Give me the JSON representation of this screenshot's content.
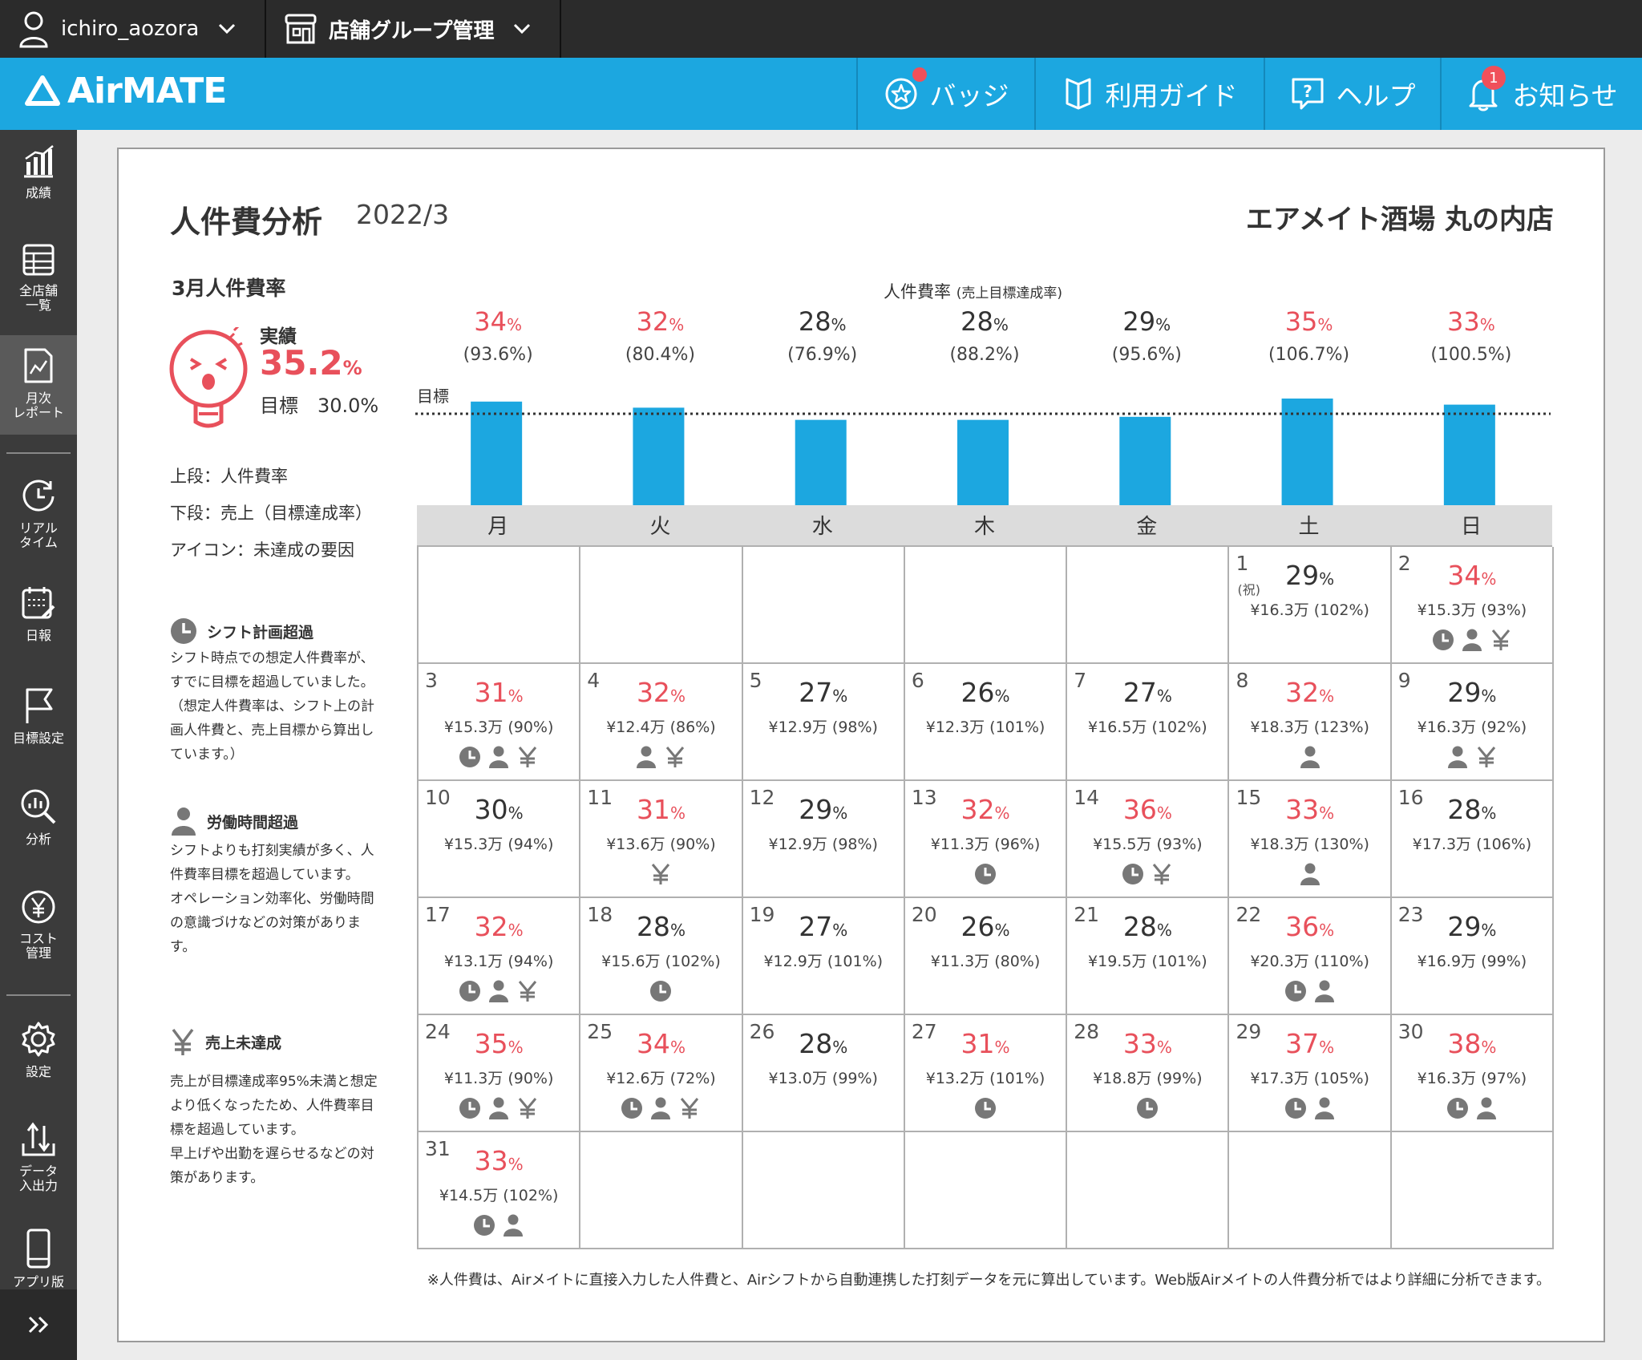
{
  "topbar": {
    "user": "ichiro_aozora",
    "group": "店舗グループ管理"
  },
  "header": {
    "logo": "AirMATE",
    "buttons": [
      {
        "label": "バッジ",
        "icon": "star-badge-icon"
      },
      {
        "label": "利用ガイド",
        "icon": "guide-book-icon"
      },
      {
        "label": "ヘルプ",
        "icon": "help-bubble-icon"
      },
      {
        "label": "お知らせ",
        "icon": "bell-icon",
        "count": "1"
      }
    ]
  },
  "sidebar": [
    {
      "label": "成績",
      "icon": "bar-chart-icon"
    },
    {
      "label": "全店舗\n一覧",
      "icon": "table-icon"
    },
    {
      "label": "月次\nレポート",
      "icon": "report-icon",
      "active": true
    },
    {
      "label": "リアル\nタイム",
      "icon": "clock-icon"
    },
    {
      "label": "日報",
      "icon": "calendar-icon"
    },
    {
      "label": "目標設定",
      "icon": "flag-icon"
    },
    {
      "label": "分析",
      "icon": "analysis-icon"
    },
    {
      "label": "コスト\n管理",
      "icon": "yen-icon"
    },
    {
      "label": "設定",
      "icon": "gear-icon"
    },
    {
      "label": "データ\n入出力",
      "icon": "data-io-icon"
    },
    {
      "label": "アプリ版",
      "icon": "phone-icon"
    }
  ],
  "page": {
    "title": "人件費分析",
    "period": "2022/3",
    "store": "エアメイト酒場 丸の内店"
  },
  "summary": {
    "title": "3月人件費率",
    "actual_label": "実績",
    "actual_value": "35.2",
    "pct": "%",
    "target_label": "目標　30.0%"
  },
  "legend": {
    "upper": "上段：人件費率",
    "lower": "下段：売上（目標達成率）",
    "icon": "アイコン：未達成の要因"
  },
  "reasons": [
    {
      "title": "シフト計画超過",
      "icon": "clock-icon",
      "text": "シフト時点での想定人件費率が、すでに目標を超過していました。（想定人件費率は、シフト上の計画人件費と、売上目標から算出しています。）"
    },
    {
      "title": "労働時間超過",
      "icon": "person-icon",
      "text": "シフトよりも打刻実績が多く、人件費率目標を超過しています。\nオペレーション効率化、労働時間の意識づけなどの対策があります。"
    },
    {
      "title": "売上未達成",
      "icon": "yen-icon",
      "text": "売上が目標達成率95%未満と想定より低くなったため、人件費率目標を超過しています。\n早上げや出勤を遅らせるなどの対策があります。"
    }
  ],
  "chart_data": {
    "type": "bar",
    "title": "人件費率",
    "subtitle": "(売上目標達成率)",
    "goal_label": "目標",
    "goal_value": 30,
    "categories": [
      "月",
      "火",
      "水",
      "木",
      "金",
      "土",
      "日"
    ],
    "values": [
      34,
      32,
      28,
      28,
      29,
      35,
      33
    ],
    "labels": [
      "34",
      "32",
      "28",
      "28",
      "29",
      "35",
      "33"
    ],
    "sub_labels": [
      "(93.6%)",
      "(80.4%)",
      "(76.9%)",
      "(88.2%)",
      "(95.6%)",
      "(106.7%)",
      "(100.5%)"
    ],
    "over_goal": [
      true,
      true,
      false,
      false,
      false,
      true,
      true
    ],
    "color": "#1ca7e0",
    "over_color": "#e8505b"
  },
  "calendar": {
    "weekdays": [
      "月",
      "火",
      "水",
      "木",
      "金",
      "土",
      "日"
    ],
    "leading_blanks": 5,
    "days": [
      {
        "d": "1",
        "hol": "(祝)",
        "rate": "29",
        "over": false,
        "sales": "¥16.3万 (102%)",
        "icons": []
      },
      {
        "d": "2",
        "rate": "34",
        "over": true,
        "sales": "¥15.3万 (93%)",
        "icons": [
          "clock",
          "person",
          "yen"
        ]
      },
      {
        "d": "3",
        "rate": "31",
        "over": true,
        "sales": "¥15.3万 (90%)",
        "icons": [
          "clock",
          "person",
          "yen"
        ]
      },
      {
        "d": "4",
        "rate": "32",
        "over": true,
        "sales": "¥12.4万 (86%)",
        "icons": [
          "person",
          "yen"
        ]
      },
      {
        "d": "5",
        "rate": "27",
        "over": false,
        "sales": "¥12.9万 (98%)",
        "icons": []
      },
      {
        "d": "6",
        "rate": "26",
        "over": false,
        "sales": "¥12.3万 (101%)",
        "icons": []
      },
      {
        "d": "7",
        "rate": "27",
        "over": false,
        "sales": "¥16.5万 (102%)",
        "icons": []
      },
      {
        "d": "8",
        "rate": "32",
        "over": true,
        "sales": "¥18.3万 (123%)",
        "icons": [
          "person"
        ]
      },
      {
        "d": "9",
        "rate": "29",
        "over": false,
        "sales": "¥16.3万 (92%)",
        "icons": [
          "person",
          "yen"
        ]
      },
      {
        "d": "10",
        "rate": "30",
        "over": false,
        "sales": "¥15.3万 (94%)",
        "icons": []
      },
      {
        "d": "11",
        "rate": "31",
        "over": true,
        "sales": "¥13.6万 (90%)",
        "icons": [
          "yen"
        ]
      },
      {
        "d": "12",
        "rate": "29",
        "over": false,
        "sales": "¥12.9万 (98%)",
        "icons": []
      },
      {
        "d": "13",
        "rate": "32",
        "over": true,
        "sales": "¥11.3万 (96%)",
        "icons": [
          "clock"
        ]
      },
      {
        "d": "14",
        "rate": "36",
        "over": true,
        "sales": "¥15.5万 (93%)",
        "icons": [
          "clock",
          "yen"
        ]
      },
      {
        "d": "15",
        "rate": "33",
        "over": true,
        "sales": "¥18.3万 (130%)",
        "icons": [
          "person"
        ]
      },
      {
        "d": "16",
        "rate": "28",
        "over": false,
        "sales": "¥17.3万 (106%)",
        "icons": []
      },
      {
        "d": "17",
        "rate": "32",
        "over": true,
        "sales": "¥13.1万 (94%)",
        "icons": [
          "clock",
          "person",
          "yen"
        ]
      },
      {
        "d": "18",
        "rate": "28",
        "over": false,
        "sales": "¥15.6万 (102%)",
        "icons": [
          "clock"
        ]
      },
      {
        "d": "19",
        "rate": "27",
        "over": false,
        "sales": "¥12.9万 (101%)",
        "icons": []
      },
      {
        "d": "20",
        "rate": "26",
        "over": false,
        "sales": "¥11.3万 (80%)",
        "icons": []
      },
      {
        "d": "21",
        "rate": "28",
        "over": false,
        "sales": "¥19.5万 (101%)",
        "icons": []
      },
      {
        "d": "22",
        "rate": "36",
        "over": true,
        "sales": "¥20.3万 (110%)",
        "icons": [
          "clock",
          "person"
        ]
      },
      {
        "d": "23",
        "rate": "29",
        "over": false,
        "sales": "¥16.9万 (99%)",
        "icons": []
      },
      {
        "d": "24",
        "rate": "35",
        "over": true,
        "sales": "¥11.3万 (90%)",
        "icons": [
          "clock",
          "person",
          "yen"
        ]
      },
      {
        "d": "25",
        "rate": "34",
        "over": true,
        "sales": "¥12.6万 (72%)",
        "icons": [
          "clock",
          "person",
          "yen"
        ]
      },
      {
        "d": "26",
        "rate": "28",
        "over": false,
        "sales": "¥13.0万 (99%)",
        "icons": []
      },
      {
        "d": "27",
        "rate": "31",
        "over": true,
        "sales": "¥13.2万 (101%)",
        "icons": [
          "clock"
        ]
      },
      {
        "d": "28",
        "rate": "33",
        "over": true,
        "sales": "¥18.8万 (99%)",
        "icons": [
          "clock"
        ]
      },
      {
        "d": "29",
        "rate": "37",
        "over": true,
        "sales": "¥17.3万 (105%)",
        "icons": [
          "clock",
          "person"
        ]
      },
      {
        "d": "30",
        "rate": "38",
        "over": true,
        "sales": "¥16.3万 (97%)",
        "icons": [
          "clock",
          "person"
        ]
      },
      {
        "d": "31",
        "rate": "33",
        "over": true,
        "sales": "¥14.5万 (102%)",
        "icons": [
          "clock",
          "person"
        ]
      }
    ]
  },
  "footnote": "※人件費は、Airメイトに直接入力した人件費と、Airシフトから自動連携した打刻データを元に算出しています。Web版Airメイトの人件費分析ではより詳細に分析できます。"
}
